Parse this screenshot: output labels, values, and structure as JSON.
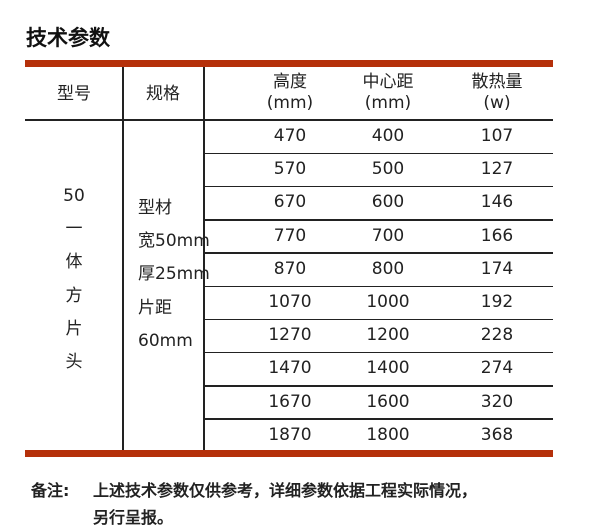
{
  "title": "技术参数",
  "colors": {
    "accent": "#b5300a"
  },
  "table": {
    "headers": [
      {
        "line1": "型号"
      },
      {
        "line1": "规格"
      },
      {
        "line1": "高度",
        "line2": "(mm)"
      },
      {
        "line1": "中心距",
        "line2": "(mm)"
      },
      {
        "line1": "散热量",
        "line2": "(w)"
      }
    ],
    "model": [
      "50",
      "一",
      "体",
      "方",
      "片",
      "头"
    ],
    "spec": [
      "型材",
      "宽50mm",
      "厚25mm",
      "片距",
      "60mm"
    ],
    "rows": [
      [
        "470",
        "400",
        "107"
      ],
      [
        "570",
        "500",
        "127"
      ],
      [
        "670",
        "600",
        "146"
      ],
      [
        "770",
        "700",
        "166"
      ],
      [
        "870",
        "800",
        "174"
      ],
      [
        "1070",
        "1000",
        "192"
      ],
      [
        "1270",
        "1200",
        "228"
      ],
      [
        "1470",
        "1400",
        "274"
      ],
      [
        "1670",
        "1600",
        "320"
      ],
      [
        "1870",
        "1800",
        "368"
      ]
    ]
  },
  "note": {
    "label": "备注:",
    "line1": "上述技术参数仅供参考，详细参数依据工程实际情况，",
    "line2": "另行呈报。"
  }
}
